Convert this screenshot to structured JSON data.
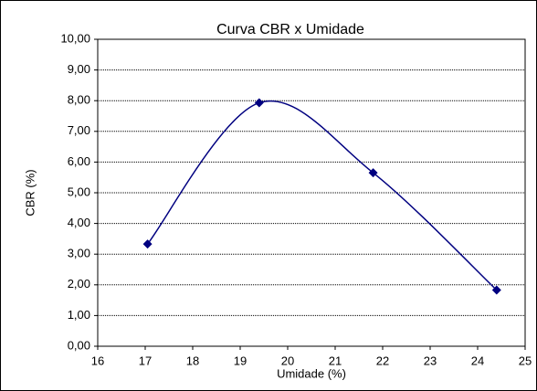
{
  "chart_data": {
    "type": "line",
    "title": "Curva CBR x Umidade",
    "x_label": "Umidade (%)",
    "y_label": "CBR (%)",
    "x": [
      17.05,
      19.4,
      21.8,
      24.4
    ],
    "series": [
      {
        "color": "#000080",
        "values": [
          3.33,
          7.93,
          5.65,
          1.83
        ]
      }
    ],
    "smooth": true,
    "xlim": [
      16,
      25
    ],
    "xticks": [
      16,
      17,
      18,
      19,
      20,
      21,
      22,
      23,
      24,
      25
    ],
    "ylim": [
      0,
      10
    ],
    "yticks": [
      {
        "value": 0,
        "label": "0,00"
      },
      {
        "value": 1,
        "label": "1,00"
      },
      {
        "value": 2,
        "label": "2,00"
      },
      {
        "value": 3,
        "label": "3,00"
      },
      {
        "value": 4,
        "label": "4,00"
      },
      {
        "value": 5,
        "label": "5,00"
      },
      {
        "value": 6,
        "label": "6,00"
      },
      {
        "value": 7,
        "label": "7,00"
      },
      {
        "value": 8,
        "label": "8,00"
      },
      {
        "value": 9,
        "label": "9,00"
      },
      {
        "value": 10,
        "label": "10,00"
      }
    ],
    "grid": true
  }
}
